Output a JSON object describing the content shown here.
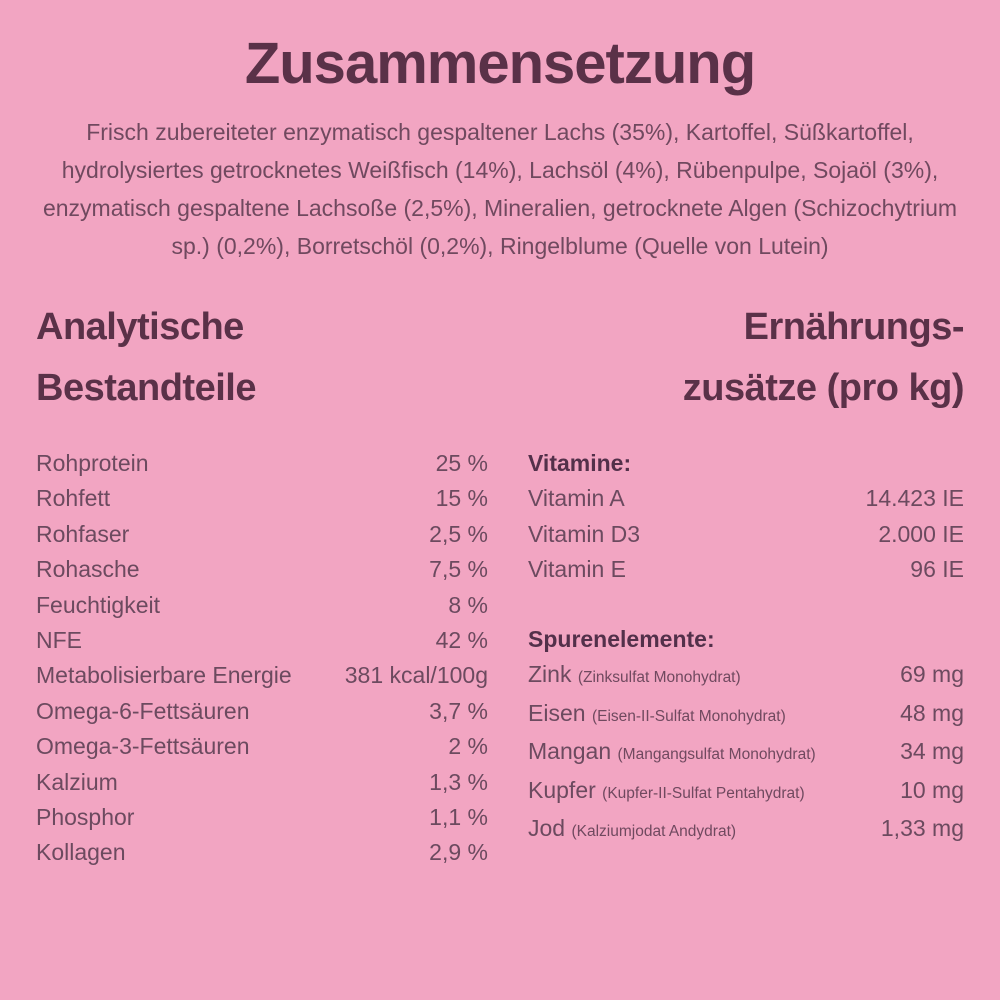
{
  "colors": {
    "background": "#F2A5C2",
    "heading_text": "#5A3148",
    "body_text": "#70495F",
    "row_text": "#6C4A5F"
  },
  "title": "Zusammensetzung",
  "ingredients_text": "Frisch zubereiteter enzymatisch gespaltener Lachs (35%), Kartoffel, Süßkartoffel, hydrolysiertes getrocknetes Weißfisch (14%), Lachsöl (4%), Rübenpulpe, Sojaöl (3%), enzymatisch gespaltene Lachsoße (2,5%), Mineralien, getrocknete Algen (Schizochytrium sp.) (0,2%), Borretschöl (0,2%), Ringelblume (Quelle von Lutein)",
  "analytical": {
    "heading_line1": "Analytische",
    "heading_line2": "Bestandteile",
    "rows": [
      {
        "label": "Rohprotein",
        "value": "25 %"
      },
      {
        "label": "Rohfett",
        "value": "15 %"
      },
      {
        "label": "Rohfaser",
        "value": "2,5 %"
      },
      {
        "label": "Rohasche",
        "value": "7,5 %"
      },
      {
        "label": "Feuchtigkeit",
        "value": "8 %"
      },
      {
        "label": "NFE",
        "value": "42 %"
      },
      {
        "label": "Metabolisierbare Energie",
        "value": "381 kcal/100g"
      },
      {
        "label": "Omega-6-Fettsäuren",
        "value": "3,7 %"
      },
      {
        "label": "Omega-3-Fettsäuren",
        "value": "2 %"
      },
      {
        "label": "Kalzium",
        "value": "1,3 %"
      },
      {
        "label": "Phosphor",
        "value": "1,1 %"
      },
      {
        "label": "Kollagen",
        "value": "2,9 %"
      }
    ]
  },
  "additives": {
    "heading_line1": "Ernährungs-",
    "heading_line2": "zusätze (pro kg)",
    "vitamins": {
      "heading": "Vitamine:",
      "rows": [
        {
          "label": "Vitamin A",
          "value": "14.423 IE"
        },
        {
          "label": "Vitamin D3",
          "value": "2.000 IE"
        },
        {
          "label": "Vitamin E",
          "value": "96 IE"
        }
      ]
    },
    "trace_elements": {
      "heading": "Spurenelemente:",
      "rows": [
        {
          "label": "Zink",
          "detail": "(Zinksulfat Monohydrat)",
          "value": "69 mg"
        },
        {
          "label": "Eisen",
          "detail": "(Eisen-II-Sulfat Monohydrat)",
          "value": "48 mg"
        },
        {
          "label": "Mangan",
          "detail": "(Mangangsulfat Monohydrat)",
          "value": "34 mg"
        },
        {
          "label": "Kupfer",
          "detail": "(Kupfer-II-Sulfat Pentahydrat)",
          "value": "10 mg"
        },
        {
          "label": "Jod",
          "detail": "(Kalziumjodat Andydrat)",
          "value": "1,33 mg"
        }
      ]
    }
  }
}
